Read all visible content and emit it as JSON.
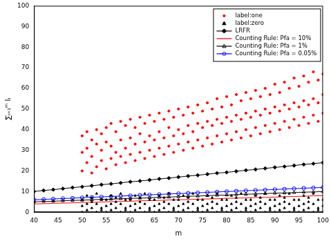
{
  "chart_data": {
    "type": "scatter",
    "xlabel": "m",
    "ylabel": "∑ᵢ₌₁ᵐ Iᵢ",
    "xlim": [
      40,
      100
    ],
    "xticks": [
      40,
      45,
      50,
      55,
      60,
      65,
      70,
      75,
      80,
      85,
      90,
      95,
      100
    ],
    "ylim": [
      0,
      100
    ],
    "yticks": [
      0,
      10,
      20,
      30,
      40,
      50,
      60,
      70,
      80,
      90,
      100
    ],
    "grid": false,
    "legend": "upper right",
    "series": [
      {
        "name": "label:one",
        "type": "scatter",
        "color": "#ff0000",
        "marker": "dot",
        "x": [
          50,
          50,
          50,
          51,
          51,
          51,
          52,
          52,
          52,
          53,
          53,
          53,
          54,
          54,
          54,
          55,
          55,
          55,
          56,
          56,
          56,
          57,
          57,
          57,
          58,
          58,
          58,
          59,
          59,
          59,
          60,
          60,
          60,
          61,
          61,
          61,
          62,
          62,
          62,
          63,
          63,
          63,
          64,
          64,
          64,
          65,
          65,
          65,
          66,
          66,
          66,
          67,
          67,
          67,
          68,
          68,
          68,
          69,
          69,
          69,
          70,
          70,
          70,
          71,
          71,
          71,
          72,
          72,
          72,
          73,
          73,
          73,
          74,
          74,
          74,
          75,
          75,
          75,
          76,
          76,
          76,
          77,
          77,
          77,
          78,
          78,
          78,
          79,
          79,
          79,
          80,
          80,
          80,
          81,
          81,
          81,
          82,
          82,
          82,
          83,
          83,
          83,
          84,
          84,
          84,
          85,
          85,
          85,
          86,
          86,
          86,
          87,
          87,
          87,
          88,
          88,
          88,
          89,
          89,
          89,
          90,
          90,
          90,
          91,
          91,
          91,
          92,
          92,
          92,
          93,
          93,
          93,
          94,
          94,
          94,
          95,
          95,
          95,
          96,
          96,
          96,
          97,
          97,
          97,
          98,
          98,
          98,
          99,
          99,
          99,
          100,
          100,
          100
        ],
        "values": [
          20,
          29,
          37,
          24,
          31,
          39,
          19,
          27,
          35,
          22,
          33,
          40,
          25,
          30,
          38,
          21,
          34,
          41,
          26,
          32,
          43,
          23,
          29,
          39,
          27,
          35,
          44,
          24,
          31,
          42,
          28,
          36,
          45,
          25,
          33,
          41,
          29,
          38,
          46,
          26,
          34,
          43,
          30,
          37,
          47,
          27,
          35,
          44,
          31,
          39,
          48,
          28,
          36,
          45,
          32,
          41,
          49,
          29,
          37,
          46,
          33,
          40,
          50,
          30,
          38,
          47,
          34,
          42,
          51,
          31,
          39,
          48,
          35,
          43,
          52,
          32,
          41,
          49,
          36,
          44,
          53,
          33,
          42,
          50,
          37,
          45,
          55,
          34,
          43,
          51,
          38,
          46,
          56,
          35,
          44,
          52,
          39,
          47,
          57,
          36,
          45,
          54,
          40,
          48,
          58,
          37,
          46,
          55,
          41,
          49,
          59,
          38,
          47,
          56,
          42,
          50,
          60,
          39,
          48,
          57,
          43,
          51,
          62,
          40,
          49,
          58,
          44,
          52,
          63,
          41,
          50,
          60,
          45,
          53,
          65,
          42,
          51,
          61,
          46,
          54,
          66,
          43,
          52,
          63,
          47,
          55,
          68,
          44,
          53,
          64,
          48,
          57,
          67
        ]
      },
      {
        "name": "label:zero",
        "type": "scatter",
        "color": "#000000",
        "marker": "triangle",
        "x": [
          50,
          50,
          50,
          51,
          51,
          51,
          52,
          52,
          52,
          53,
          53,
          53,
          54,
          54,
          54,
          55,
          55,
          55,
          56,
          56,
          56,
          57,
          57,
          57,
          58,
          58,
          58,
          59,
          59,
          59,
          60,
          60,
          60,
          61,
          61,
          61,
          62,
          62,
          62,
          63,
          63,
          63,
          64,
          64,
          64,
          65,
          65,
          65,
          66,
          66,
          66,
          67,
          67,
          67,
          68,
          68,
          68,
          69,
          69,
          69,
          70,
          70,
          70,
          71,
          71,
          71,
          72,
          72,
          72,
          73,
          73,
          73,
          74,
          74,
          74,
          75,
          75,
          75,
          76,
          76,
          76,
          77,
          77,
          77,
          78,
          78,
          78,
          79,
          79,
          79,
          80,
          80,
          80,
          81,
          81,
          81,
          82,
          82,
          82,
          83,
          83,
          83,
          84,
          84,
          84,
          85,
          85,
          85,
          86,
          86,
          86,
          87,
          87,
          87,
          88,
          88,
          88,
          89,
          89,
          89,
          90,
          90,
          90,
          91,
          91,
          91,
          92,
          92,
          92,
          93,
          93,
          93,
          94,
          94,
          94,
          95,
          95,
          95,
          96,
          96,
          96,
          97,
          97,
          97,
          98,
          98,
          98,
          99,
          99,
          99,
          100,
          100,
          100
        ],
        "values": [
          0,
          3,
          6,
          1,
          4,
          8,
          2,
          5,
          7,
          0,
          4,
          9,
          1,
          2,
          6,
          0,
          3,
          6,
          1,
          4,
          8,
          2,
          5,
          7,
          0,
          4,
          9,
          1,
          2,
          6,
          0,
          3,
          6,
          1,
          4,
          8,
          2,
          5,
          7,
          0,
          4,
          9,
          1,
          2,
          6,
          0,
          3,
          6,
          1,
          4,
          8,
          2,
          5,
          7,
          0,
          4,
          9,
          1,
          2,
          6,
          0,
          3,
          6,
          1,
          4,
          8,
          2,
          5,
          7,
          0,
          4,
          9,
          1,
          2,
          6,
          0,
          3,
          6,
          1,
          4,
          8,
          2,
          5,
          7,
          0,
          4,
          9,
          1,
          2,
          6,
          0,
          3,
          6,
          1,
          4,
          8,
          2,
          5,
          7,
          0,
          4,
          9,
          1,
          2,
          6,
          0,
          3,
          6,
          1,
          4,
          8,
          2,
          5,
          7,
          0,
          4,
          9,
          1,
          2,
          6,
          0,
          3,
          6,
          1,
          4,
          8,
          2,
          5,
          7,
          0,
          4,
          9,
          1,
          2,
          6,
          0,
          3,
          6,
          1,
          4,
          8,
          2,
          5,
          7,
          0,
          4,
          9,
          1,
          2,
          6,
          0,
          3,
          6
        ]
      },
      {
        "name": "LRFR",
        "type": "line",
        "color": "#000000",
        "marker": "diamond",
        "x": [
          40,
          42,
          44,
          46,
          48,
          50,
          52,
          54,
          56,
          58,
          60,
          62,
          64,
          66,
          68,
          70,
          72,
          74,
          76,
          78,
          80,
          82,
          84,
          86,
          88,
          90,
          92,
          94,
          96,
          98,
          100
        ],
        "values": [
          10.0,
          10.5,
          10.9,
          11.4,
          11.9,
          12.3,
          12.8,
          13.3,
          13.7,
          14.2,
          14.7,
          15.1,
          15.6,
          16.1,
          16.5,
          17.0,
          17.5,
          17.9,
          18.4,
          18.9,
          19.3,
          19.8,
          20.3,
          20.7,
          21.2,
          21.7,
          22.1,
          22.6,
          23.1,
          23.5,
          24.0
        ]
      },
      {
        "name": "Counting Rule: Pfa = 10%",
        "type": "line",
        "color": "#ff0000",
        "marker": "none",
        "x": [
          40,
          42,
          44,
          46,
          48,
          50,
          52,
          54,
          56,
          58,
          60,
          62,
          64,
          66,
          68,
          70,
          72,
          74,
          76,
          78,
          80,
          82,
          84,
          86,
          88,
          90,
          92,
          94,
          96,
          98,
          100
        ],
        "values": [
          4.0,
          4.1,
          4.3,
          4.4,
          4.5,
          4.7,
          4.8,
          4.9,
          5.1,
          5.2,
          5.3,
          5.5,
          5.6,
          5.7,
          5.9,
          6.0,
          6.1,
          6.3,
          6.4,
          6.5,
          6.7,
          6.8,
          6.9,
          7.1,
          7.2,
          7.3,
          7.5,
          7.6,
          7.7,
          7.9,
          8.0
        ]
      },
      {
        "name": "Counting Rule: Pfa = 1%",
        "type": "line",
        "color": "#000000",
        "marker": "triangle",
        "x": [
          40,
          42,
          44,
          46,
          48,
          50,
          52,
          54,
          56,
          58,
          60,
          62,
          64,
          66,
          68,
          70,
          72,
          74,
          76,
          78,
          80,
          82,
          84,
          86,
          88,
          90,
          92,
          94,
          96,
          98,
          100
        ],
        "values": [
          5.0,
          5.2,
          5.3,
          5.5,
          5.7,
          5.8,
          6.0,
          6.2,
          6.3,
          6.5,
          6.7,
          6.8,
          7.0,
          7.2,
          7.3,
          7.5,
          7.7,
          7.8,
          8.0,
          8.2,
          8.3,
          8.5,
          8.7,
          8.8,
          9.0,
          9.2,
          9.3,
          9.5,
          9.7,
          9.8,
          10.0
        ]
      },
      {
        "name": "Counting Rule: Pfa = 0.05%",
        "type": "line",
        "color": "#0000ff",
        "marker": "circle",
        "x": [
          40,
          42,
          44,
          46,
          48,
          50,
          52,
          54,
          56,
          58,
          60,
          62,
          64,
          66,
          68,
          70,
          72,
          74,
          76,
          78,
          80,
          82,
          84,
          86,
          88,
          90,
          92,
          94,
          96,
          98,
          100
        ],
        "values": [
          6.0,
          6.2,
          6.4,
          6.6,
          6.8,
          7.0,
          7.2,
          7.4,
          7.6,
          7.8,
          8.0,
          8.2,
          8.4,
          8.6,
          8.8,
          9.0,
          9.2,
          9.4,
          9.6,
          9.8,
          10.0,
          10.2,
          10.4,
          10.6,
          10.8,
          11.0,
          11.2,
          11.4,
          11.6,
          11.8,
          12.0
        ]
      }
    ]
  }
}
